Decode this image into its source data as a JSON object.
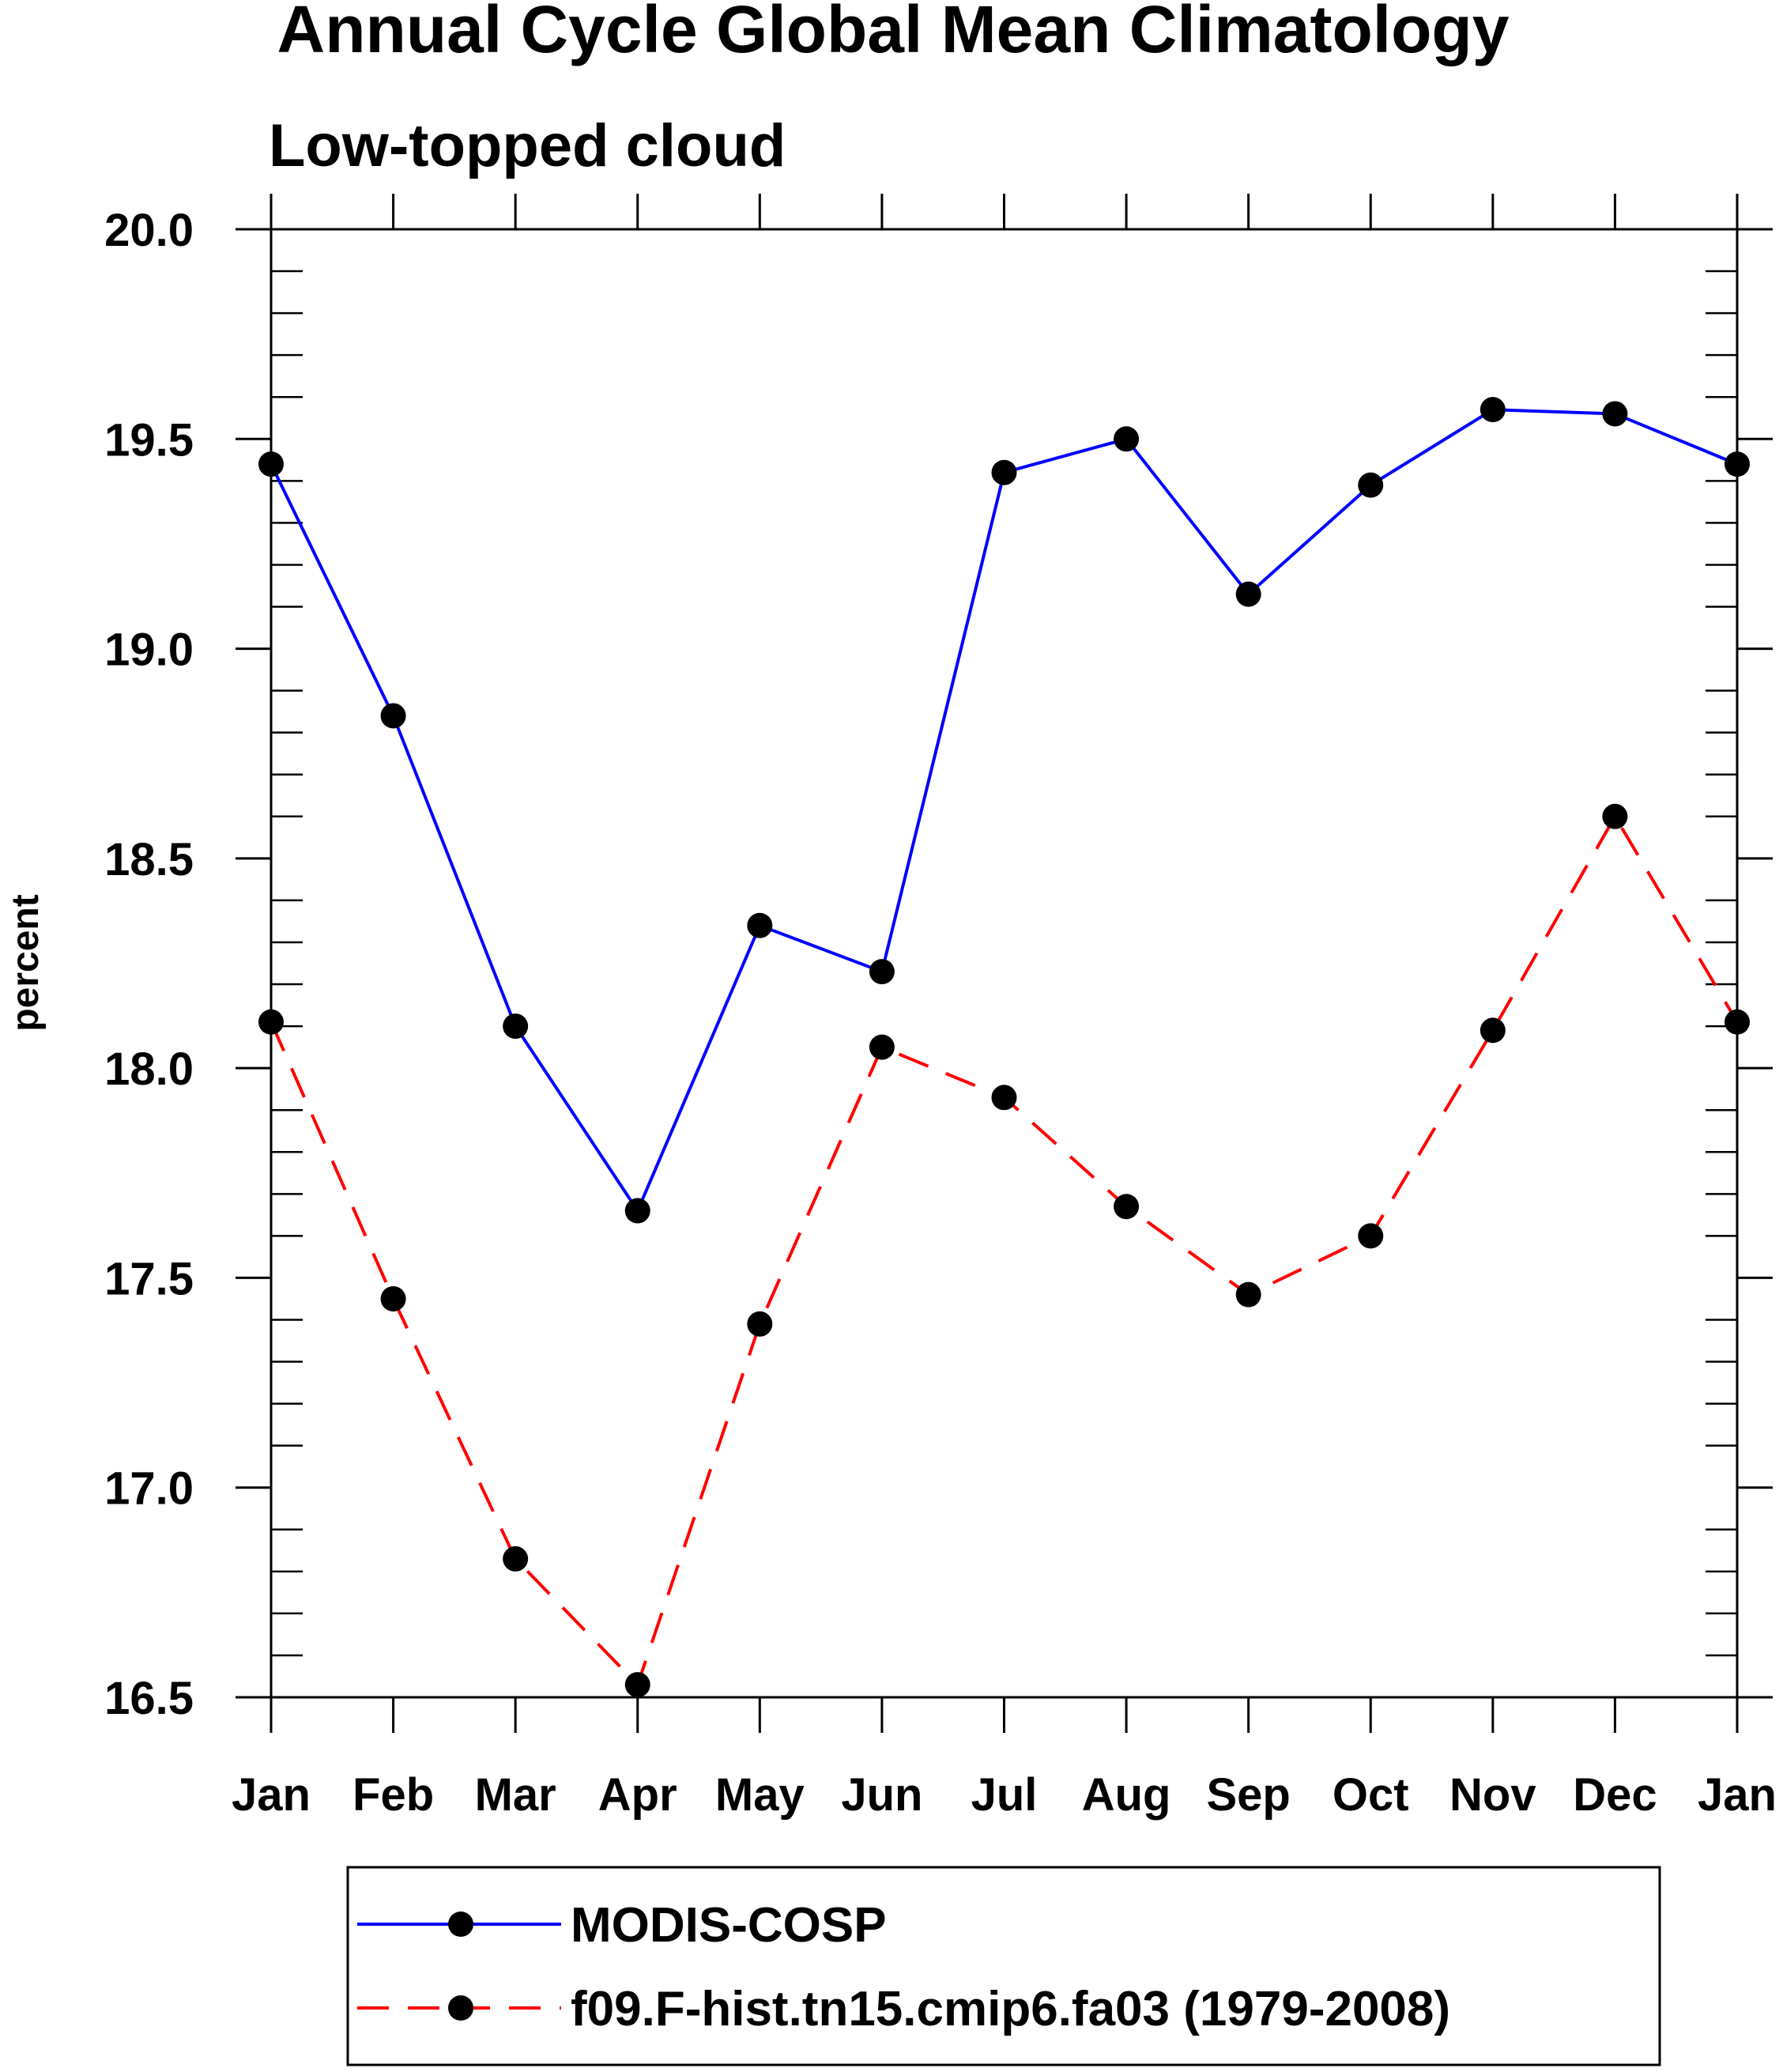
{
  "chart_data": {
    "type": "line",
    "title": "Annual Cycle Global Mean Climatology",
    "subtitle": "Low-topped cloud",
    "xlabel": "",
    "ylabel": "percent",
    "categories": [
      "Jan",
      "Feb",
      "Mar",
      "Apr",
      "May",
      "Jun",
      "Jul",
      "Aug",
      "Sep",
      "Oct",
      "Nov",
      "Dec",
      "Jan"
    ],
    "ylim": [
      16.5,
      20.0
    ],
    "yticks": [
      "16.5",
      "17.0",
      "17.5",
      "18.0",
      "18.5",
      "19.0",
      "19.5",
      "20.0"
    ],
    "series": [
      {
        "name": "MODIS-COSP",
        "color": "#0000ff",
        "line_style": "solid",
        "marker": "filled-circle",
        "values": [
          19.44,
          18.84,
          18.1,
          17.66,
          18.34,
          18.23,
          19.42,
          19.5,
          19.13,
          19.39,
          19.57,
          19.56,
          19.44
        ]
      },
      {
        "name": "f09.F-hist.tn15.cmip6.fa03 (1979-2008)",
        "color": "#ff0000",
        "line_style": "dashed",
        "marker": "filled-circle",
        "values": [
          18.11,
          17.45,
          16.83,
          16.53,
          17.39,
          18.05,
          17.93,
          17.67,
          17.46,
          17.6,
          18.09,
          18.6,
          18.11
        ]
      }
    ],
    "legend_position": "bottom",
    "grid": false
  }
}
